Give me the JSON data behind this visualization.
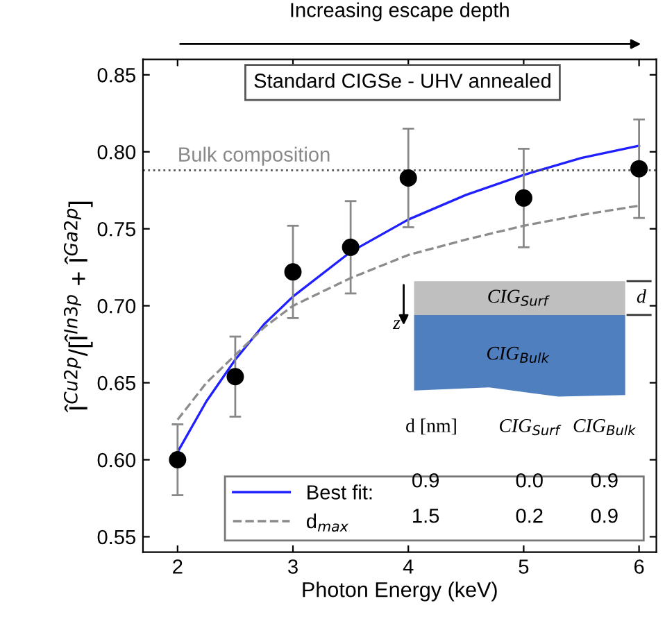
{
  "chart_data": {
    "type": "scatter",
    "title": "Increasing escape depth",
    "xlabel": "Photon Energy (keV)",
    "ylabel": "Î$^{Cu2p}$/[Î$^{In3p}$ + Î$^{Ga2p}$]",
    "annotations": [
      "Standard CIGSe - UHV annealed",
      "CIG$_{Surf}$",
      "CIG$_{Bulk}$",
      "d",
      "z",
      "d [nm]",
      "CIG$_{Surf}$",
      "CIG$_{Bulk}$",
      "0.9",
      "0.0",
      "0.9",
      "1.5",
      "0.2",
      "0.9"
    ],
    "series": [
      {
        "color": "#000000",
        "marker": "circle",
        "x": [
          2,
          2.5,
          3,
          3.5,
          4,
          5,
          6
        ],
        "values": [
          0.6,
          0.654,
          0.722,
          0.738,
          0.783,
          0.77,
          0.789
        ],
        "errors": [
          0.023,
          0.026,
          0.03,
          0.03,
          0.032,
          0.032,
          0.032
        ]
      },
      {
        "type": "line",
        "name": "Best fit:",
        "color": "#1f1fff",
        "line_style": "solid",
        "x": [
          2,
          2.25,
          2.5,
          2.75,
          3,
          3.5,
          4,
          4.5,
          5,
          5.5,
          6
        ],
        "values": [
          0.605,
          0.638,
          0.665,
          0.688,
          0.706,
          0.735,
          0.756,
          0.772,
          0.785,
          0.796,
          0.804
        ]
      },
      {
        "type": "line",
        "name": "d$_{max}$",
        "color": "#8c8c8c",
        "line_style": "dashed",
        "x": [
          2,
          2.25,
          2.5,
          2.75,
          3,
          3.5,
          4,
          4.5,
          5,
          5.5,
          6
        ],
        "values": [
          0.626,
          0.65,
          0.668,
          0.686,
          0.7,
          0.718,
          0.733,
          0.743,
          0.752,
          0.759,
          0.765
        ]
      }
    ],
    "ref_lines": [
      {
        "axis": "y",
        "value": 0.788,
        "label": "Bulk composition",
        "color": "#555555",
        "line_style": "dotted"
      }
    ],
    "xlim": [
      1.7,
      6.15
    ],
    "ylim": [
      0.54,
      0.86
    ],
    "xticks": [
      2,
      3,
      4,
      5,
      6
    ],
    "yticks": [
      0.55,
      {
        "value": 0.6,
        "label": "0.60"
      },
      0.65,
      {
        "value": 0.7,
        "label": "0.70"
      },
      0.75,
      {
        "value": 0.8,
        "label": "0.80"
      },
      0.85
    ],
    "grid": false,
    "legend": "bottom"
  }
}
